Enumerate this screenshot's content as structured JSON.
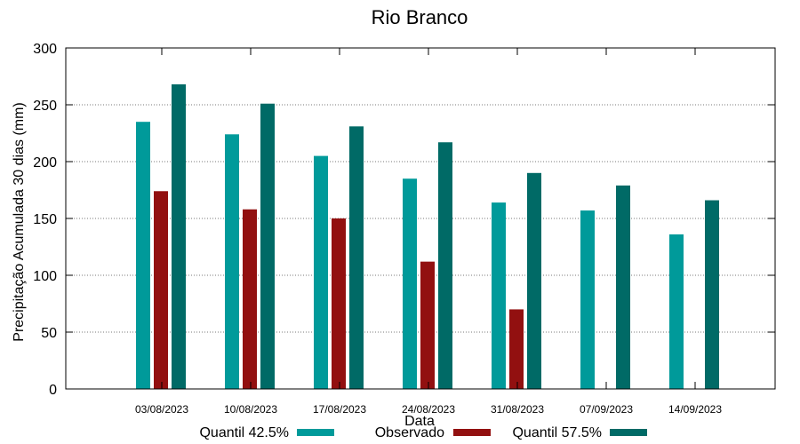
{
  "chart_data": {
    "type": "bar",
    "title": "Rio Branco",
    "xlabel": "Data",
    "ylabel": "Precipitação Acumulada 30 dias (mm)",
    "ylim": [
      0,
      300
    ],
    "yticks": [
      0,
      50,
      100,
      150,
      200,
      250,
      300
    ],
    "grid": true,
    "legend_position": "bottom",
    "categories": [
      "03/08/2023",
      "10/08/2023",
      "17/08/2023",
      "24/08/2023",
      "31/08/2023",
      "07/09/2023",
      "14/09/2023"
    ],
    "series": [
      {
        "name": "Quantil 42.5%",
        "color": "#009a9a",
        "values": [
          235,
          224,
          205,
          185,
          164,
          157,
          136
        ]
      },
      {
        "name": "Observado",
        "color": "#921010",
        "values": [
          174,
          158,
          150,
          112,
          70,
          null,
          null
        ]
      },
      {
        "name": "Quantil 57.5%",
        "color": "#006a66",
        "values": [
          268,
          251,
          231,
          217,
          190,
          179,
          166
        ]
      }
    ]
  }
}
